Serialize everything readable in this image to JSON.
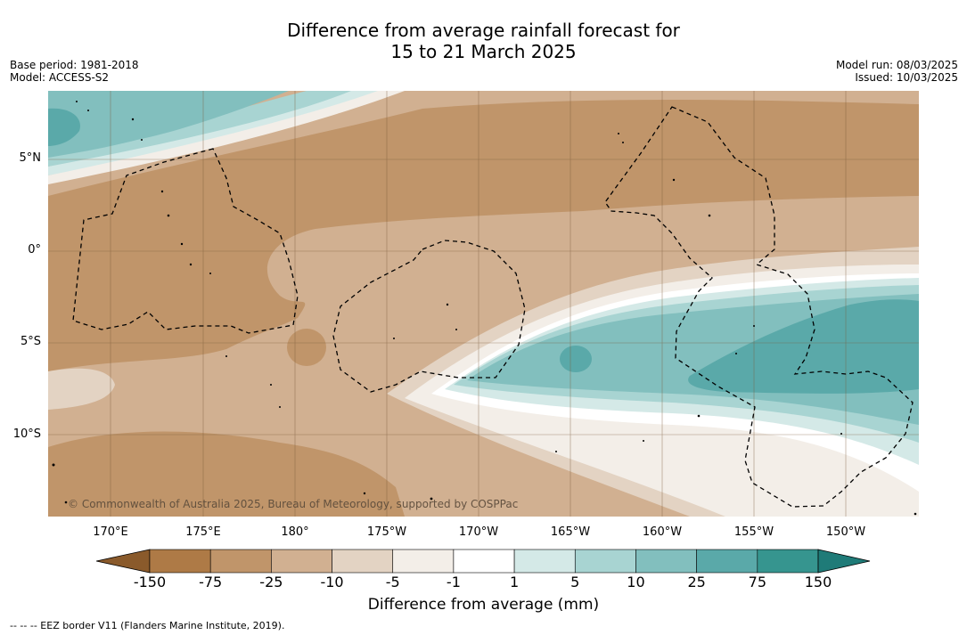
{
  "title_line1": "Difference from average rainfall forecast for",
  "title_line2": "15 to 21 March 2025",
  "base_period": "Base period: 1981-2018",
  "model": "Model: ACCESS-S2",
  "model_run": "Model run: 08/03/2025",
  "issued": "Issued: 10/03/2025",
  "copyright": "© Commonwealth of Australia 2025, Bureau of Meteorology, supported by COSPPac",
  "lat_ticks": [
    "5°N",
    "0°",
    "5°S",
    "10°S"
  ],
  "lon_ticks": [
    "170°E",
    "175°E",
    "180°",
    "175°W",
    "170°W",
    "165°W",
    "160°W",
    "155°W",
    "150°W"
  ],
  "colorbar": {
    "labels": [
      "-150",
      "-75",
      "-25",
      "-10",
      "-5",
      "-1",
      "1",
      "5",
      "10",
      "25",
      "75",
      "150"
    ],
    "colors": [
      "#8a5a2b",
      "#ae7a46",
      "#c0956a",
      "#d1b091",
      "#e3d3c3",
      "#f3eee8",
      "#ffffff",
      "#d4e9e7",
      "#a8d4d2",
      "#82bfbe",
      "#5aa9a9",
      "#36958f",
      "#1f7b78"
    ],
    "title": "Difference from average (mm)"
  },
  "footnote": "-- -- -- EEZ border V11 (Flanders Marine Institute, 2019).",
  "colors": {
    "dry_strong": "#c0956a",
    "dry": "#d1b091",
    "dry_light": "#e3d3c3",
    "near_avg": "#f3eee8",
    "wet_light": "#d4e9e7",
    "wet": "#a8d4d2",
    "wet_mid": "#82bfbe",
    "wet_strong": "#5aa9a9"
  }
}
